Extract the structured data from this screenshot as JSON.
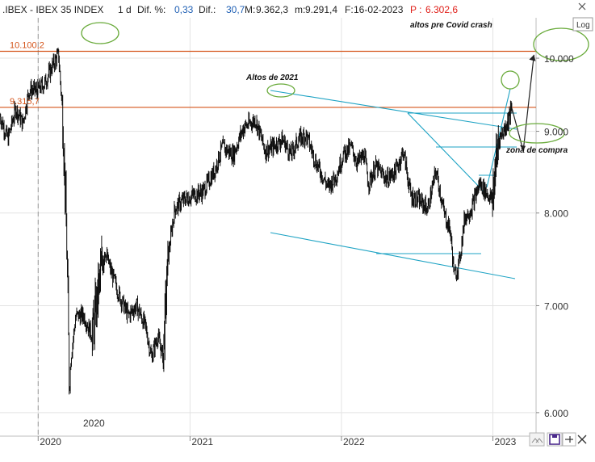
{
  "header": {
    "ticker": ".IBEX - IBEX 35 INDEX",
    "period": "1 d",
    "diff_pct_label": "Dif. %:",
    "diff_pct_value": "0,33",
    "diff_label": "Dif.:",
    "diff_value": "30,7",
    "max_label": "M:",
    "max_value": "9.362,3",
    "min_label": "m:",
    "min_value": "9.291,4",
    "date_label": "F:",
    "date_value": "16-02-2023",
    "p_label": "P :",
    "p_value": "6.302,6",
    "p_color": "#e0201a"
  },
  "controls": {
    "log_label": "Log",
    "collapse_icon": "double-chevron-icon",
    "save_icon": "save-icon",
    "pin_icon": "pin-icon",
    "close_icon": "close-icon"
  },
  "chart_data": {
    "type": "line",
    "style": "ohlc-bars",
    "scale": "log",
    "ylim": [
      5800,
      10600
    ],
    "xlim": [
      "2019-10-01",
      "2023-04-15"
    ],
    "x_ticks": [
      "2020",
      "2021",
      "2022",
      "2023"
    ],
    "y_ticks": [
      "6.000",
      "7.000",
      "8.000",
      "9.000",
      "10.000"
    ],
    "y_tick_values": [
      6000,
      7000,
      8000,
      9000,
      10000
    ],
    "inline_date_label": "2020",
    "series": [
      {
        "x": [
          "2019-10-01",
          "2019-10-20",
          "2019-11-08",
          "2019-11-25",
          "2019-12-10",
          "2019-12-31",
          "2020-01-17",
          "2020-02-05",
          "2020-02-19",
          "2020-02-28",
          "2020-03-06",
          "2020-03-12",
          "2020-03-16",
          "2020-03-20",
          "2020-04-01",
          "2020-04-20",
          "2020-05-10",
          "2020-06-08",
          "2020-06-25",
          "2020-07-15",
          "2020-08-05",
          "2020-08-25",
          "2020-09-15",
          "2020-09-30",
          "2020-10-15",
          "2020-10-28",
          "2020-11-09",
          "2020-11-25",
          "2020-12-15",
          "2021-01-05",
          "2021-02-01",
          "2021-03-01",
          "2021-03-20",
          "2021-04-15",
          "2021-05-10",
          "2021-06-08",
          "2021-07-01",
          "2021-07-20",
          "2021-08-12",
          "2021-09-01",
          "2021-09-20",
          "2021-10-08",
          "2021-11-01",
          "2021-11-30",
          "2021-12-20",
          "2022-01-05",
          "2022-01-24",
          "2022-02-08",
          "2022-02-25",
          "2022-03-07",
          "2022-03-25",
          "2022-04-20",
          "2022-05-12",
          "2022-05-30",
          "2022-06-17",
          "2022-07-06",
          "2022-07-28",
          "2022-08-17",
          "2022-09-05",
          "2022-09-20",
          "2022-09-30",
          "2022-10-12",
          "2022-10-25",
          "2022-11-10",
          "2022-11-30",
          "2022-12-15",
          "2022-12-30",
          "2023-01-15",
          "2023-01-31",
          "2023-02-16"
        ],
        "values": [
          9200,
          8900,
          9300,
          9100,
          9550,
          9550,
          9650,
          9900,
          10050,
          9300,
          8300,
          7200,
          6200,
          6500,
          6900,
          6900,
          6700,
          7600,
          7350,
          7100,
          6900,
          7000,
          6800,
          6500,
          6700,
          6500,
          7500,
          8050,
          8150,
          8200,
          8250,
          8500,
          8800,
          8700,
          9050,
          9150,
          8750,
          8800,
          8900,
          8700,
          8900,
          8950,
          8600,
          8300,
          8450,
          8700,
          8800,
          8600,
          8700,
          8350,
          8550,
          8400,
          8500,
          8750,
          8200,
          8150,
          8050,
          8500,
          8000,
          7800,
          7300,
          7450,
          7950,
          8050,
          8350,
          8250,
          8150,
          8900,
          9050,
          9300
        ]
      }
    ],
    "levels": [
      {
        "label": "10.100,2",
        "value": 10100.2,
        "color": "#d4541a"
      },
      {
        "label": "9.315,7",
        "value": 9315.7,
        "color": "#d4541a"
      }
    ],
    "annotations": [
      {
        "text": "altos pre Covid crash"
      },
      {
        "text": "Altos de 2021"
      },
      {
        "text": "zona de compra"
      }
    ],
    "projection": {
      "x": [
        "2023-02-16",
        "2023-03-15",
        "2023-04-10"
      ],
      "values": [
        9300,
        8750,
        10050
      ]
    },
    "colors": {
      "bars": "#111111",
      "trendlines": "#1ea3c4",
      "levels": "#d4541a",
      "ellipses": "#6aab3c",
      "projection": "#222222"
    }
  }
}
